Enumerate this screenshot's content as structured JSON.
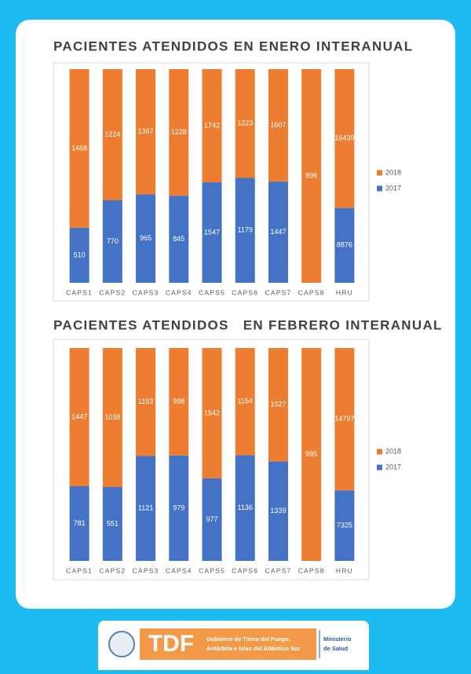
{
  "chart_data": [
    {
      "type": "bar",
      "stacked_percent": true,
      "title": "PACIENTES ATENDIDOS EN ENERO INTERANUAL",
      "categories": [
        "CAPS1",
        "CAPS2",
        "CAPS3",
        "CAPS4",
        "CAPS5",
        "CAPS6",
        "CAPS7",
        "CAPS8",
        "HRU"
      ],
      "series": [
        {
          "name": "2017",
          "color": "#4472c4",
          "values": [
            510,
            770,
            965,
            845,
            1547,
            1179,
            1447,
            null,
            8876
          ]
        },
        {
          "name": "2018",
          "color": "#ed7d31",
          "values": [
            1468,
            1224,
            1367,
            1228,
            1742,
            1223,
            1607,
            896,
            16439
          ]
        }
      ],
      "legend": "right"
    },
    {
      "type": "bar",
      "stacked_percent": true,
      "title": "PACIENTES ATENDIDOS   EN FEBRERO INTERANUAL",
      "categories": [
        "CAPS1",
        "CAPS2",
        "CAPS3",
        "CAPS4",
        "CAPS5",
        "CAPS6",
        "CAPS7",
        "CAPS8",
        "HRU"
      ],
      "series": [
        {
          "name": "2017",
          "color": "#4472c4",
          "values": [
            781,
            551,
            1121,
            979,
            977,
            1136,
            1339,
            null,
            7325
          ]
        },
        {
          "name": "2018",
          "color": "#ed7d31",
          "values": [
            1447,
            1038,
            1153,
            998,
            1542,
            1154,
            1527,
            995,
            14797
          ]
        }
      ],
      "legend": "right"
    }
  ],
  "footer": {
    "logo": "TDF",
    "government": [
      "Gobierno de Tierra del Fuego,",
      "Antártida e Islas del Atlántico Sur"
    ],
    "ministry": [
      "Ministerio",
      "de Salud"
    ]
  }
}
